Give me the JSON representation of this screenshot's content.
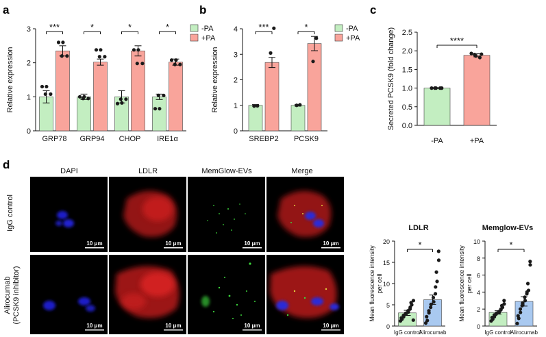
{
  "colors": {
    "neg": "#c3eec1",
    "pos": "#f9a49b",
    "igg": "#c3eec1",
    "ali": "#a9c9f0",
    "dot": "#1a1a1a",
    "fluor_bg": "#000000"
  },
  "legend": {
    "neg": "-PA",
    "pos": "+PA"
  },
  "chart_data": [
    {
      "panel": "a",
      "type": "bar",
      "ylabel": "Relative expression",
      "xlabel": "",
      "ylim": [
        0,
        3
      ],
      "yticks": [
        0,
        1,
        2,
        3
      ],
      "categories": [
        "GRP78",
        "GRP94",
        "CHOP",
        "IRE1α"
      ],
      "series": [
        {
          "name": "-PA",
          "values": [
            1.0,
            1.0,
            1.0,
            1.0
          ],
          "sem": [
            0.18,
            0.08,
            0.18,
            0.08
          ],
          "points": [
            [
              1.3,
              1.0,
              0.8,
              0.65
            ],
            [
              1.08,
              0.95,
              0.93,
              1.04
            ],
            [
              1.3,
              1.0,
              0.82,
              0.65
            ],
            [
              1.08,
              0.95,
              0.93,
              1.04
            ]
          ]
        },
        {
          "name": "+PA",
          "values": [
            2.35,
            2.02,
            2.35,
            2.02
          ],
          "sem": [
            0.15,
            0.09,
            0.15,
            0.09
          ],
          "points": [
            [
              2.6,
              2.38,
              2.38,
              2.08
            ],
            [
              2.2,
              2.18,
              1.98,
              1.95
            ],
            [
              2.6,
              2.38,
              2.38,
              2.08
            ],
            [
              2.2,
              2.18,
              1.98,
              1.95
            ]
          ]
        }
      ],
      "significance": [
        "***",
        "*",
        "*",
        "*"
      ]
    },
    {
      "panel": "b",
      "type": "bar",
      "ylabel": "Relative expression",
      "xlabel": "",
      "ylim": [
        0,
        4
      ],
      "yticks": [
        0,
        1,
        2,
        3,
        4
      ],
      "categories": [
        "SREBP2",
        "PCSK9"
      ],
      "series": [
        {
          "name": "-PA",
          "values": [
            1.0,
            1.0
          ],
          "sem": [
            0.03,
            0.03
          ],
          "points": [
            [
              0.97,
              1.0,
              0.98,
              1.02
            ],
            [
              0.98,
              1.02,
              0.97,
              1.01
            ]
          ]
        },
        {
          "name": "+PA",
          "values": [
            2.68,
            3.42
          ],
          "sem": [
            0.2,
            0.28
          ],
          "points": [
            [
              3.05,
              2.72,
              2.6,
              2.33
            ],
            [
              4.02,
              3.63,
              3.4,
              2.87
            ]
          ]
        }
      ],
      "significance": [
        "***",
        "*"
      ]
    },
    {
      "panel": "c",
      "type": "bar",
      "ylabel": "Secreted PCSK9 (fold change)",
      "xlabel": "",
      "ylim": [
        0,
        2.5
      ],
      "yticks": [
        "0.0",
        "0.5",
        "1.0",
        "1.5",
        "2.0",
        "2.5"
      ],
      "categories": [
        "-PA",
        "+PA"
      ],
      "values": [
        1.0,
        1.88
      ],
      "sem": [
        0.01,
        0.04
      ],
      "points": [
        [
          1.0,
          1.0,
          1.0,
          1.0,
          1.0
        ],
        [
          1.93,
          1.9,
          1.86,
          1.82,
          1.91
        ]
      ],
      "significance": [
        "****"
      ]
    },
    {
      "panel": "d-LDLR",
      "type": "bar",
      "title": "LDLR",
      "ylabel": "Mean fluorescence intensity per cell",
      "xlabel": "",
      "ylim": [
        0,
        20
      ],
      "yticks": [
        0,
        5,
        10,
        15,
        20
      ],
      "categories": [
        "IgG control",
        "Alirocumab"
      ],
      "values": [
        3.1,
        6.2
      ],
      "sem": [
        0.6,
        1.1
      ],
      "points": [
        [
          1.2,
          1.6,
          1.9,
          2.2,
          2.5,
          2.8,
          3.0,
          3.3,
          3.6,
          4.0,
          4.4,
          5.0,
          5.5,
          6.0,
          1.4
        ],
        [
          0.7,
          1.3,
          2.2,
          3.1,
          3.6,
          4.4,
          5.1,
          5.7,
          6.7,
          7.6,
          9.2,
          10.5,
          12.7,
          15.5,
          17.6
        ]
      ],
      "significance": [
        "*"
      ]
    },
    {
      "panel": "d-Memglow",
      "type": "bar",
      "title": "Memglow-EVs",
      "ylabel": "Mean fluorescence intensity per cell",
      "xlabel": "",
      "ylim": [
        0,
        10
      ],
      "yticks": [
        0,
        2,
        4,
        6,
        8,
        10
      ],
      "categories": [
        "IgG control",
        "Alirocumab"
      ],
      "values": [
        1.6,
        2.9
      ],
      "sem": [
        0.2,
        0.55
      ],
      "points": [
        [
          0.6,
          0.8,
          1.0,
          1.1,
          1.3,
          1.4,
          1.5,
          1.6,
          1.7,
          1.9,
          2.0,
          2.2,
          2.4,
          2.6,
          3.0
        ],
        [
          0.3,
          0.9,
          1.2,
          1.6,
          2.0,
          2.4,
          2.7,
          3.0,
          3.4,
          3.8,
          4.0,
          4.2,
          5.0,
          7.2,
          7.6
        ]
      ],
      "significance": [
        "*"
      ]
    }
  ],
  "panels": {
    "a": "a",
    "b": "b",
    "c": "c",
    "d": "d"
  },
  "micro": {
    "channels": [
      "DAPI",
      "LDLR",
      "MemGlow-EVs",
      "Merge"
    ],
    "rows": [
      "IgG control",
      "Alirocumab",
      "(PCSK9 inhibitor)"
    ],
    "scalebar": "10 μm"
  }
}
